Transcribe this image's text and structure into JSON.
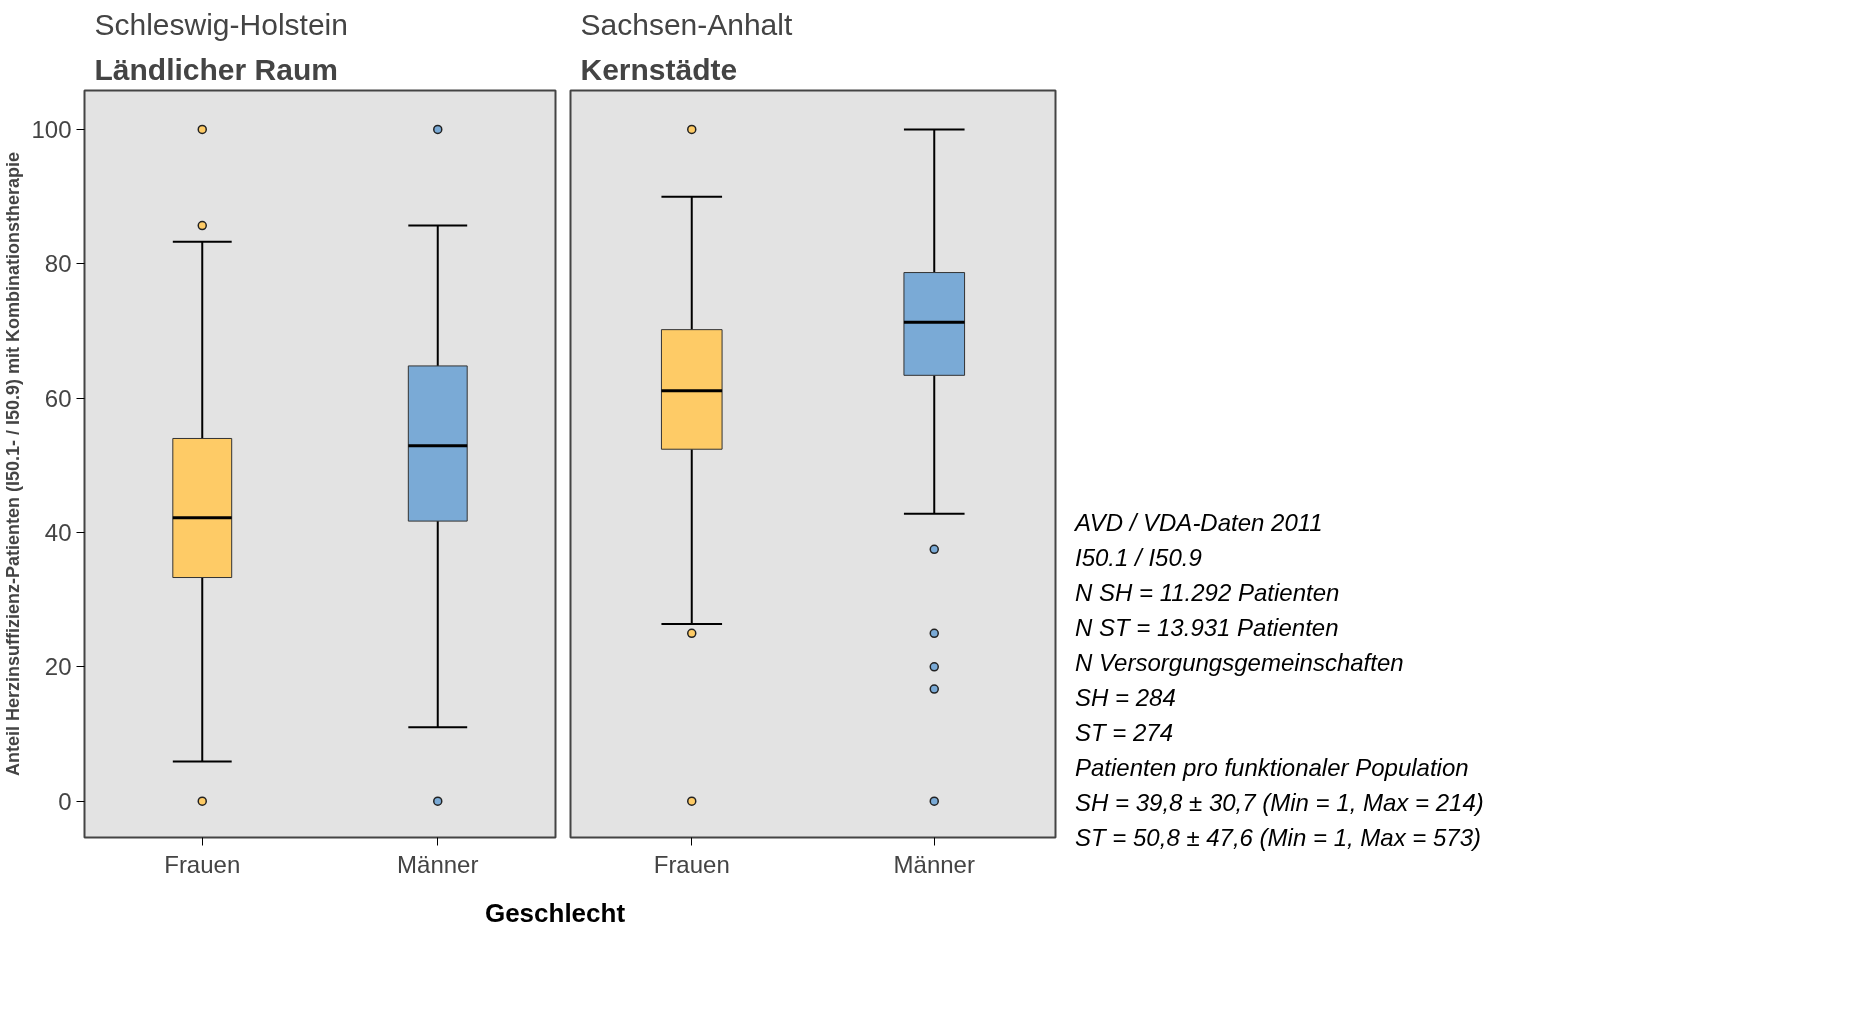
{
  "chart_data": [
    {
      "type": "box",
      "title": "Schleswig-Holstein",
      "subtitle": "Ländlicher Raum",
      "ylabel": "Anteil Herzinsuffizienz-Patienten (I50.1- / I50.9) mit Kombinationstherapie",
      "xlabel": "Geschlecht",
      "categories": [
        "Frauen",
        "Männer"
      ],
      "colors": [
        "#fecb66",
        "#7aaad6"
      ],
      "boxes": [
        {
          "low": 5.9,
          "q1": 33.3,
          "median": 42.2,
          "q3": 54.0,
          "high": 83.3,
          "outliers": [
            100,
            85.7,
            0
          ]
        },
        {
          "low": 11.0,
          "q1": 41.7,
          "median": 52.9,
          "q3": 64.8,
          "high": 85.7,
          "outliers": [
            100,
            0
          ]
        }
      ],
      "ylim": [
        -5.4,
        105.8
      ],
      "yticks": [
        0,
        20,
        40,
        60,
        80,
        100
      ],
      "grid": false
    },
    {
      "type": "box",
      "title": "Sachsen-Anhalt",
      "subtitle": "Kernstädte",
      "categories": [
        "Frauen",
        "Männer"
      ],
      "colors": [
        "#fecb66",
        "#7aaad6"
      ],
      "boxes": [
        {
          "low": 26.4,
          "q1": 52.4,
          "median": 61.1,
          "q3": 70.2,
          "high": 90.0,
          "outliers": [
            100,
            25,
            0
          ]
        },
        {
          "low": 42.8,
          "q1": 63.4,
          "median": 71.3,
          "q3": 78.7,
          "high": 100,
          "outliers": [
            37.5,
            25,
            20,
            16.7,
            0
          ]
        }
      ],
      "ylim": [
        -5.4,
        105.8
      ],
      "yticks": [
        0,
        20,
        40,
        60,
        80,
        100
      ],
      "grid": false,
      "tick_labels": "x",
      "annotations": [
        "AVD / VDA-Daten 2011",
        "I50.1 / I50.9",
        "N SH =  11.292 Patienten",
        "N ST =  13.931 Patienten",
        "N Versorgungsgemeinschaften",
        "SH = 284",
        "ST = 274",
        "Patienten pro funktionaler Population",
        "SH = 39,8 ± 30,7 (Min = 1, Max = 214)",
        "ST = 50,8 ± 47,6 (Min = 1, Max = 573)"
      ]
    }
  ]
}
